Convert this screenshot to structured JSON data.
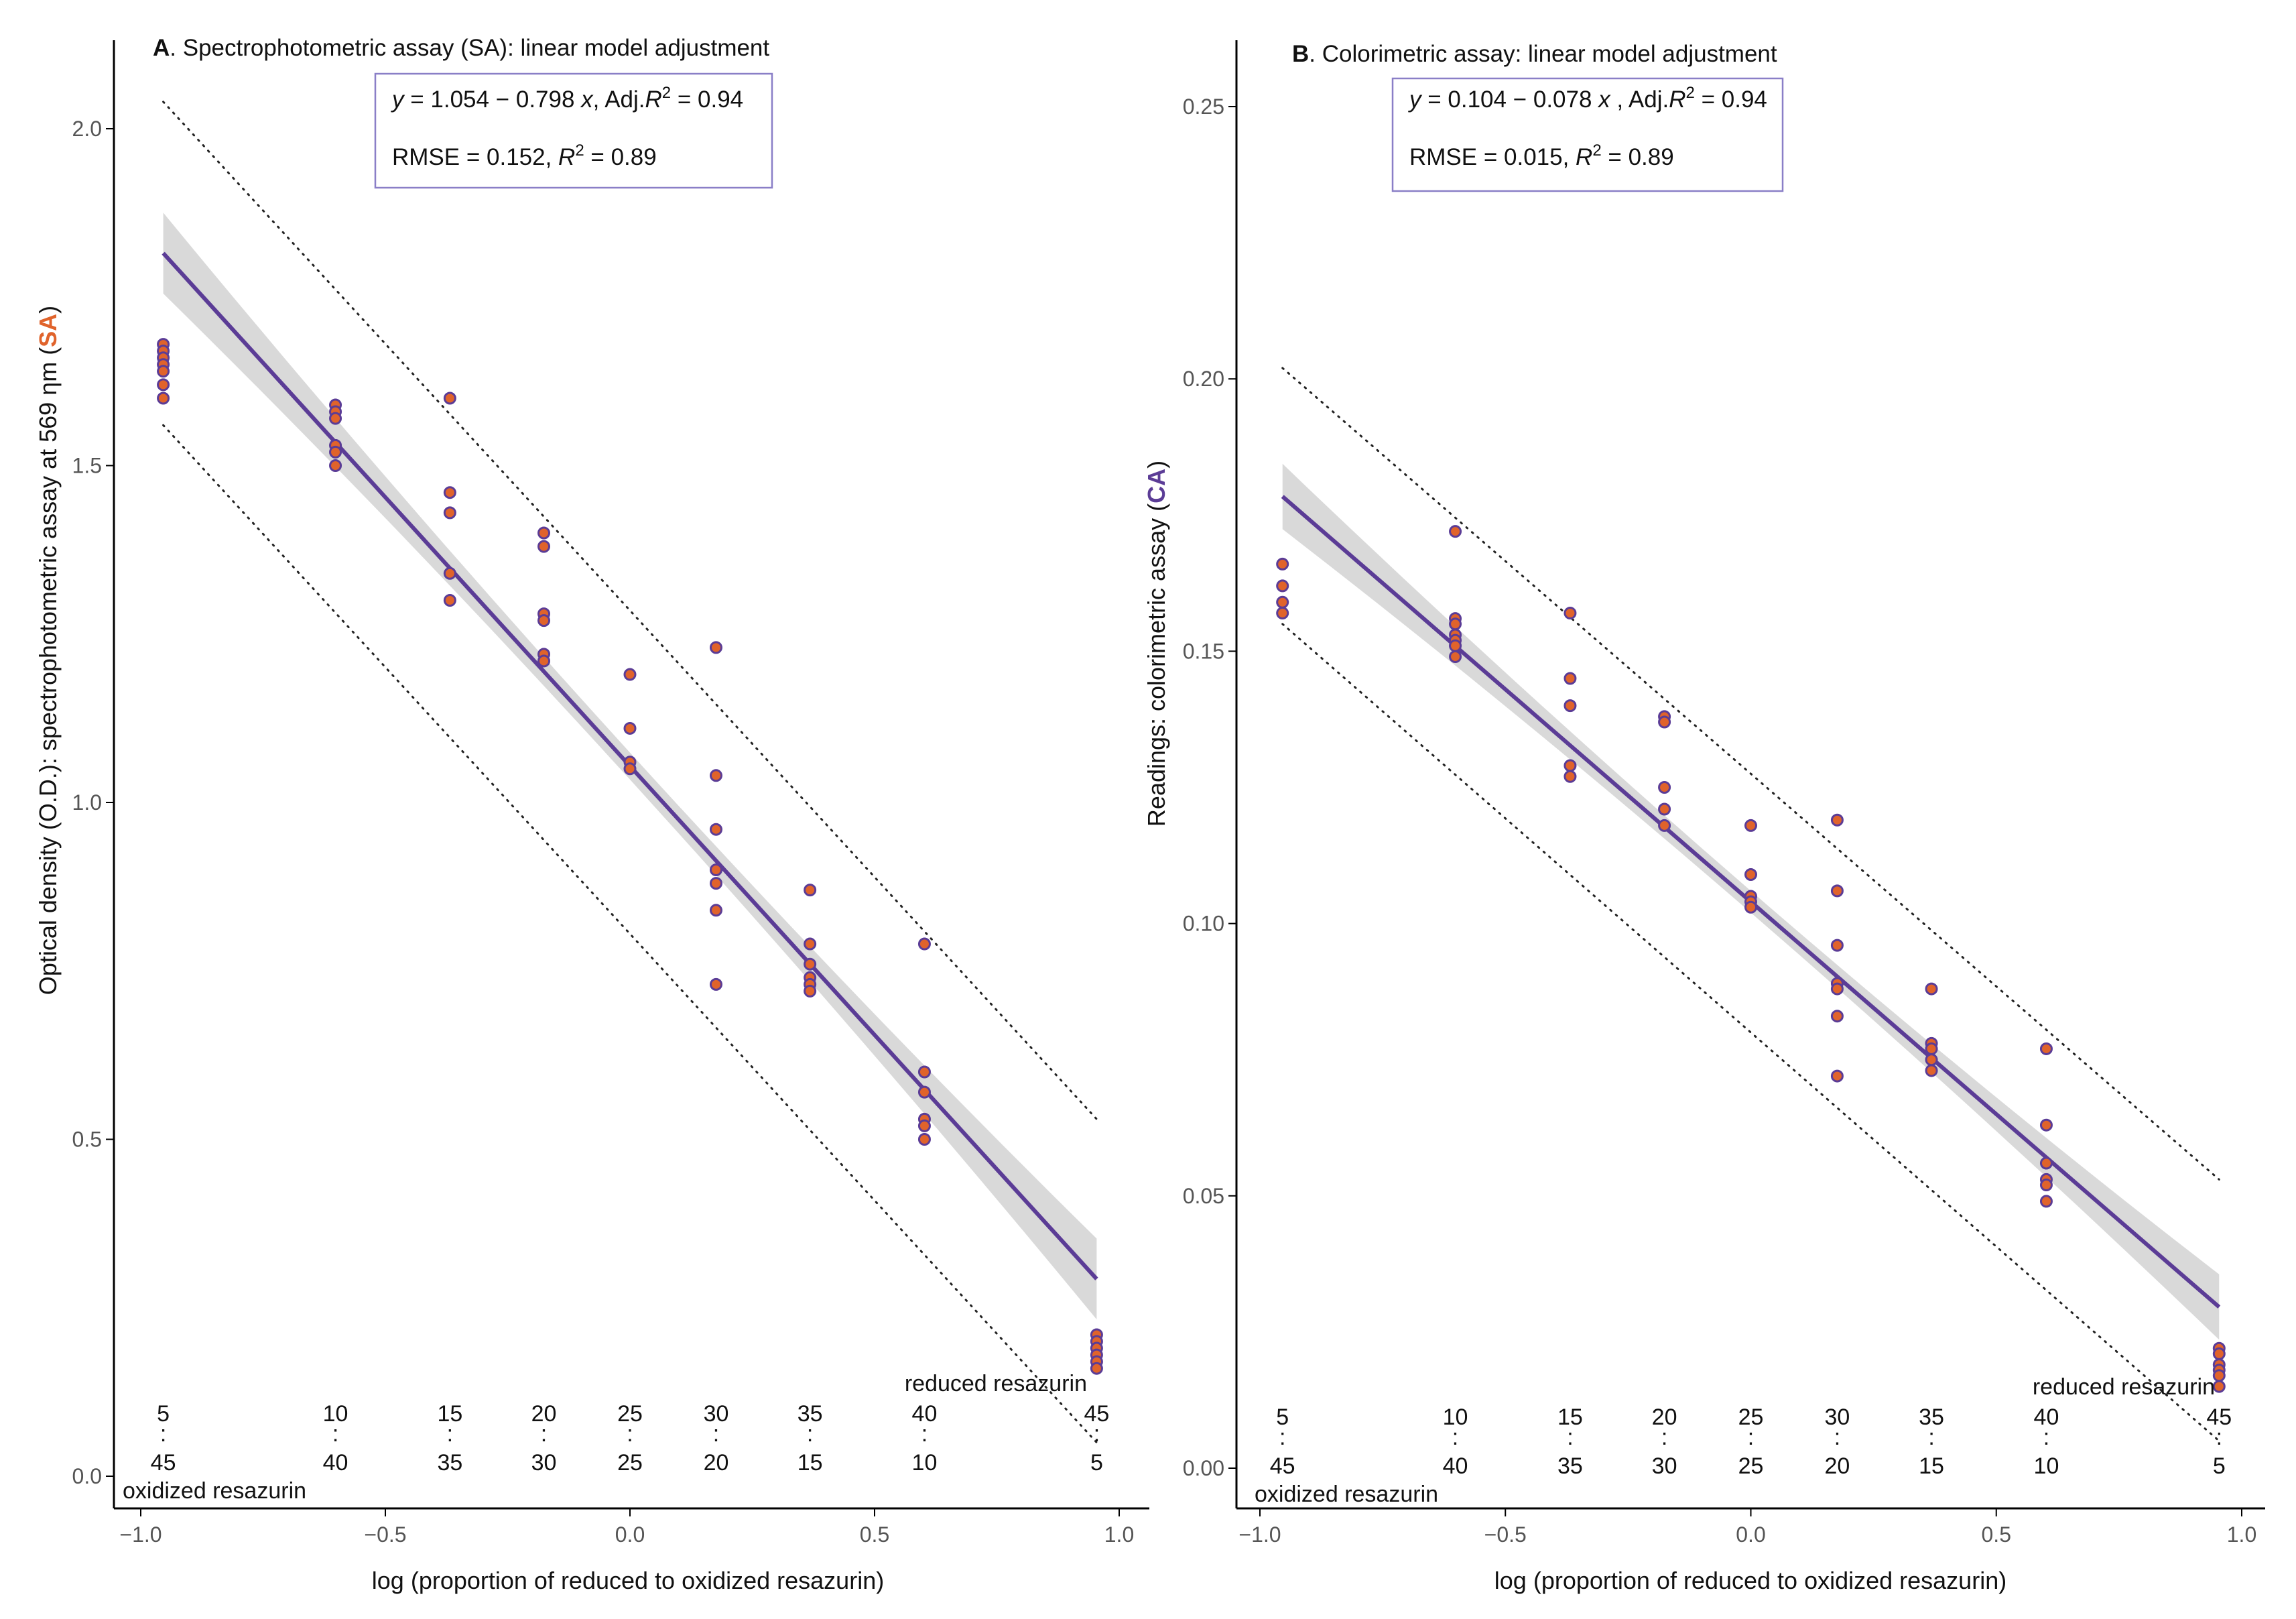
{
  "colors": {
    "fit_line": "#5b3c96",
    "ribbon": "#d9d9d9",
    "point_fill": "#e0632b",
    "point_stroke": "#5b3c96",
    "box_border": "#8a7fc7",
    "accent_sa": "#e0632b",
    "accent_ca": "#5b3c96"
  },
  "x_axis": {
    "ticks": [
      -1.0,
      -0.5,
      0.0,
      0.5,
      1.0
    ],
    "tick_labels": [
      "−1.0",
      "−0.5",
      "0.0",
      "0.5",
      "1.0"
    ]
  },
  "ratio_labels": {
    "x_positions": [
      -0.954,
      -0.602,
      -0.368,
      -0.176,
      0.0,
      0.176,
      0.368,
      0.602,
      0.954
    ],
    "reduced": [
      "5",
      "10",
      "15",
      "20",
      "25",
      "30",
      "35",
      "40",
      "45"
    ],
    "oxidized": [
      "45",
      "40",
      "35",
      "30",
      "25",
      "20",
      "15",
      "10",
      "5"
    ],
    "colon": ":"
  },
  "chart_data": [
    {
      "type": "scatter",
      "panel": "A",
      "title_bold": "A",
      "title_rest": ". Spectrophotometric assay (SA): linear model adjustment",
      "equation": {
        "y_var": "y",
        "eq_mid": " = 1.054 − 0.798 ",
        "x_var": "x",
        "adj_label": ", Adj.",
        "r_var": "R",
        "sup": "2",
        "adj_value": " = 0.94",
        "rmse_text": "RMSE = 0.152, ",
        "r2_value": " = 0.89"
      },
      "xlabel": "log (proportion of reduced to oxidized resazurin)",
      "ylabel_main": "Optical density (O.D.): spectrophotometric assay at 569 ηm (",
      "ylabel_accent": "SA",
      "ylabel_close": ")",
      "xlim": [
        -1.05,
        1.05
      ],
      "ylim": [
        -0.05,
        2.2
      ],
      "y_ticks": [
        0.0,
        0.5,
        1.0,
        1.5,
        2.0
      ],
      "y_tick_labels": [
        "0.0",
        "0.5",
        "1.0",
        "1.5",
        "2.0"
      ],
      "fit": {
        "intercept": 1.054,
        "slope": -0.798,
        "x_range": [
          -0.954,
          0.954
        ],
        "ci_half_width_ends": 0.06,
        "ci_half_width_center": 0.02
      },
      "prediction_interval": {
        "upper": [
          [
            -0.954,
            2.04
          ],
          [
            0.954,
            0.53
          ]
        ],
        "lower": [
          [
            -0.954,
            1.56
          ],
          [
            0.954,
            0.05
          ]
        ]
      },
      "corner_labels": {
        "reduced": "reduced resazurin",
        "oxidized": "oxidized resazurin"
      },
      "points": [
        [
          -0.954,
          1.68
        ],
        [
          -0.954,
          1.67
        ],
        [
          -0.954,
          1.66
        ],
        [
          -0.954,
          1.65
        ],
        [
          -0.954,
          1.64
        ],
        [
          -0.954,
          1.62
        ],
        [
          -0.954,
          1.6
        ],
        [
          -0.602,
          1.59
        ],
        [
          -0.602,
          1.58
        ],
        [
          -0.602,
          1.57
        ],
        [
          -0.602,
          1.53
        ],
        [
          -0.602,
          1.52
        ],
        [
          -0.602,
          1.5
        ],
        [
          -0.368,
          1.6
        ],
        [
          -0.368,
          1.46
        ],
        [
          -0.368,
          1.43
        ],
        [
          -0.368,
          1.34
        ],
        [
          -0.368,
          1.3
        ],
        [
          -0.176,
          1.4
        ],
        [
          -0.176,
          1.38
        ],
        [
          -0.176,
          1.28
        ],
        [
          -0.176,
          1.27
        ],
        [
          -0.176,
          1.22
        ],
        [
          -0.176,
          1.21
        ],
        [
          0.0,
          1.19
        ],
        [
          0.0,
          1.11
        ],
        [
          0.0,
          1.06
        ],
        [
          0.0,
          1.05
        ],
        [
          0.176,
          1.23
        ],
        [
          0.176,
          1.04
        ],
        [
          0.176,
          0.96
        ],
        [
          0.176,
          0.9
        ],
        [
          0.176,
          0.88
        ],
        [
          0.176,
          0.84
        ],
        [
          0.176,
          0.73
        ],
        [
          0.368,
          0.87
        ],
        [
          0.368,
          0.79
        ],
        [
          0.368,
          0.76
        ],
        [
          0.368,
          0.74
        ],
        [
          0.368,
          0.73
        ],
        [
          0.368,
          0.72
        ],
        [
          0.602,
          0.79
        ],
        [
          0.602,
          0.6
        ],
        [
          0.602,
          0.57
        ],
        [
          0.602,
          0.53
        ],
        [
          0.602,
          0.52
        ],
        [
          0.602,
          0.5
        ],
        [
          0.954,
          0.21
        ],
        [
          0.954,
          0.2
        ],
        [
          0.954,
          0.19
        ],
        [
          0.954,
          0.18
        ],
        [
          0.954,
          0.17
        ],
        [
          0.954,
          0.16
        ]
      ]
    },
    {
      "type": "scatter",
      "panel": "B",
      "title_bold": "B",
      "title_rest": ". Colorimetric assay: linear model adjustment",
      "equation": {
        "y_var": "y",
        "eq_mid": " = 0.104 − 0.078 ",
        "x_var": "x",
        "adj_label": " , Adj.",
        "r_var": "R",
        "sup": "2",
        "adj_value": " = 0.94",
        "rmse_text": "RMSE = 0.015, ",
        "r2_value": " = 0.89"
      },
      "xlabel": "log (proportion of reduced to oxidized resazurin)",
      "ylabel_main": "Readings: colorimetric assay (",
      "ylabel_accent": "CA",
      "ylabel_close": ")",
      "xlim": [
        -1.05,
        1.05
      ],
      "ylim": [
        -0.005,
        0.265
      ],
      "y_ticks": [
        0.0,
        0.05,
        0.1,
        0.15,
        0.2,
        0.25
      ],
      "y_tick_labels": [
        "0.00",
        "0.05",
        "0.10",
        "0.15",
        "0.20",
        "0.25"
      ],
      "fit": {
        "intercept": 0.104,
        "slope": -0.078,
        "x_range": [
          -0.954,
          0.954
        ],
        "ci_half_width_ends": 0.006,
        "ci_half_width_center": 0.002
      },
      "prediction_interval": {
        "upper": [
          [
            -0.954,
            0.202
          ],
          [
            0.954,
            0.053
          ]
        ],
        "lower": [
          [
            -0.954,
            0.155
          ],
          [
            0.954,
            0.005
          ]
        ]
      },
      "corner_labels": {
        "reduced": "reduced resazurin",
        "oxidized": "oxidized resazurin"
      },
      "points": [
        [
          -0.954,
          0.166
        ],
        [
          -0.954,
          0.162
        ],
        [
          -0.954,
          0.159
        ],
        [
          -0.954,
          0.157
        ],
        [
          -0.602,
          0.172
        ],
        [
          -0.602,
          0.156
        ],
        [
          -0.602,
          0.155
        ],
        [
          -0.602,
          0.153
        ],
        [
          -0.602,
          0.152
        ],
        [
          -0.602,
          0.151
        ],
        [
          -0.602,
          0.149
        ],
        [
          -0.368,
          0.157
        ],
        [
          -0.368,
          0.145
        ],
        [
          -0.368,
          0.14
        ],
        [
          -0.368,
          0.129
        ],
        [
          -0.368,
          0.127
        ],
        [
          -0.176,
          0.138
        ],
        [
          -0.176,
          0.137
        ],
        [
          -0.176,
          0.125
        ],
        [
          -0.176,
          0.121
        ],
        [
          -0.176,
          0.118
        ],
        [
          0.0,
          0.118
        ],
        [
          0.0,
          0.109
        ],
        [
          0.0,
          0.105
        ],
        [
          0.0,
          0.104
        ],
        [
          0.0,
          0.103
        ],
        [
          0.176,
          0.119
        ],
        [
          0.176,
          0.106
        ],
        [
          0.176,
          0.096
        ],
        [
          0.176,
          0.089
        ],
        [
          0.176,
          0.088
        ],
        [
          0.176,
          0.083
        ],
        [
          0.176,
          0.072
        ],
        [
          0.368,
          0.088
        ],
        [
          0.368,
          0.078
        ],
        [
          0.368,
          0.077
        ],
        [
          0.368,
          0.075
        ],
        [
          0.368,
          0.073
        ],
        [
          0.602,
          0.077
        ],
        [
          0.602,
          0.063
        ],
        [
          0.602,
          0.056
        ],
        [
          0.602,
          0.053
        ],
        [
          0.602,
          0.052
        ],
        [
          0.602,
          0.049
        ],
        [
          0.954,
          0.022
        ],
        [
          0.954,
          0.021
        ],
        [
          0.954,
          0.019
        ],
        [
          0.954,
          0.018
        ],
        [
          0.954,
          0.017
        ],
        [
          0.954,
          0.015
        ]
      ]
    }
  ]
}
